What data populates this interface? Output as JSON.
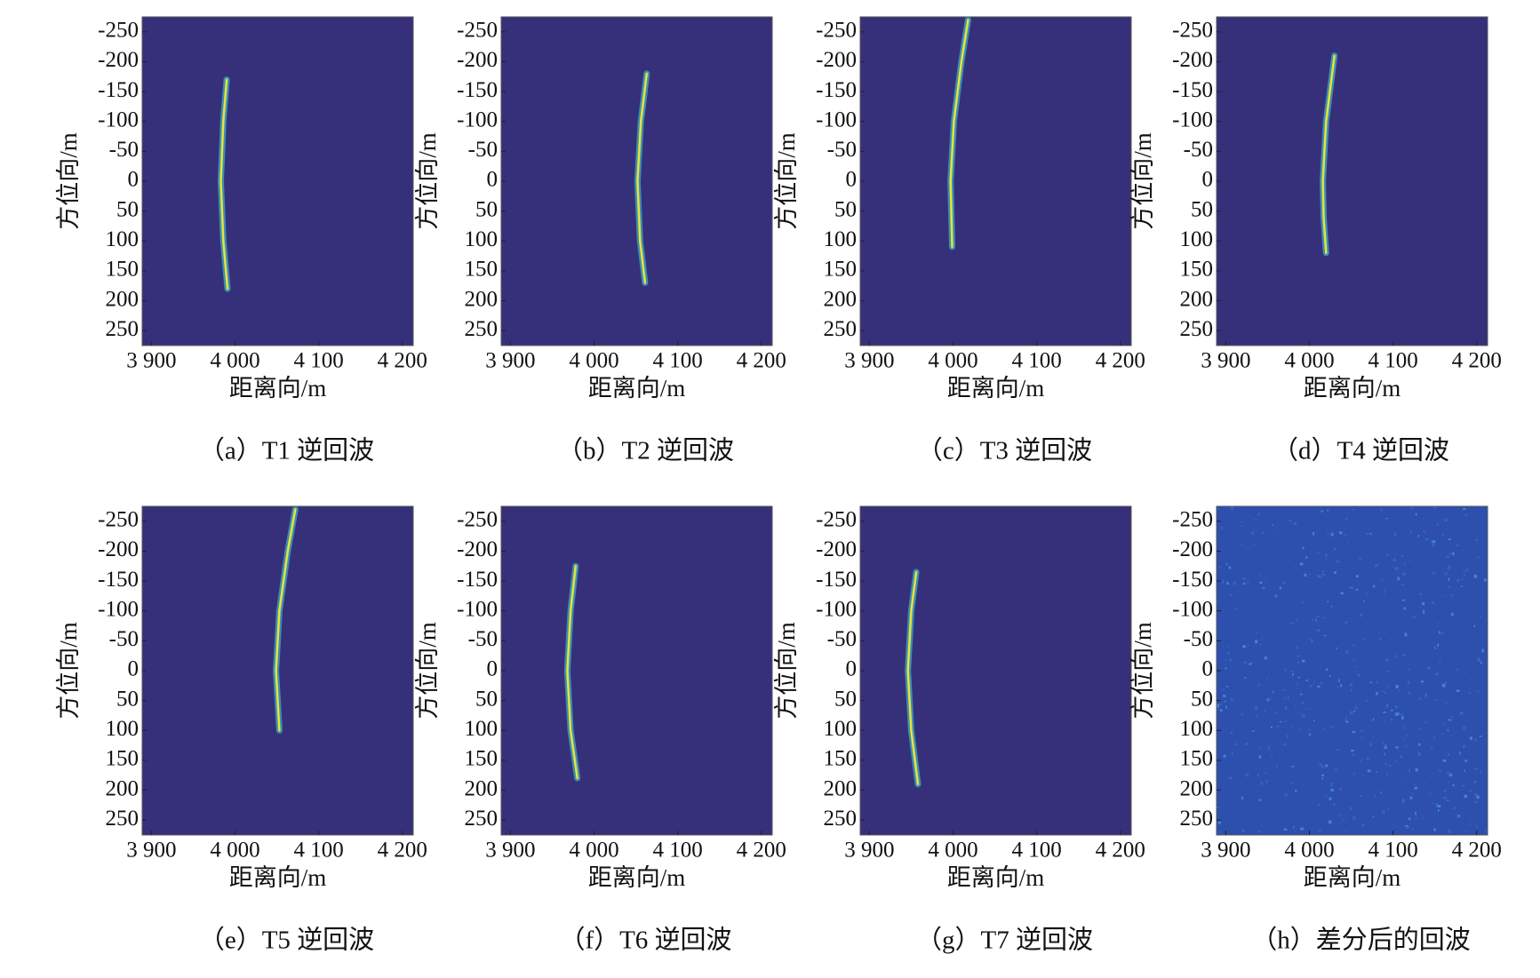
{
  "chart_data": [
    {
      "type": "line",
      "caption": "（a）T1 逆回波",
      "xlabel": "距离向/m",
      "ylabel": "方位向/m",
      "background": "#36307a",
      "xlim": [
        3889,
        4213
      ],
      "ylim": [
        -275,
        275
      ],
      "y_inverted": true,
      "xticks": [
        {
          "value": 3900,
          "label": "3 900"
        },
        {
          "value": 4000,
          "label": "4 000"
        },
        {
          "value": 4100,
          "label": "4 100"
        },
        {
          "value": 4200,
          "label": "4 200"
        }
      ],
      "yticks": [
        -250,
        -200,
        -150,
        -100,
        -50,
        0,
        50,
        100,
        150,
        200,
        250
      ],
      "series": [
        {
          "color": "#e8e23a",
          "x": [
            3990,
            3986,
            3983,
            3986,
            3991
          ],
          "values": [
            -170,
            -100,
            0,
            100,
            180
          ]
        }
      ]
    },
    {
      "type": "line",
      "caption": "（b）T2 逆回波",
      "xlabel": "距离向/m",
      "ylabel": "方位向/m",
      "background": "#36307a",
      "xlim": [
        3889,
        4213
      ],
      "ylim": [
        -275,
        275
      ],
      "y_inverted": true,
      "xticks": [
        {
          "value": 3900,
          "label": "3 900"
        },
        {
          "value": 4000,
          "label": "4 000"
        },
        {
          "value": 4100,
          "label": "4 100"
        },
        {
          "value": 4200,
          "label": "4 200"
        }
      ],
      "yticks": [
        -250,
        -200,
        -150,
        -100,
        -50,
        0,
        50,
        100,
        150,
        200,
        250
      ],
      "series": [
        {
          "color": "#e8e23a",
          "x": [
            4063,
            4056,
            4052,
            4055,
            4061
          ],
          "values": [
            -180,
            -100,
            0,
            100,
            170
          ]
        }
      ]
    },
    {
      "type": "line",
      "caption": "（c）T3 逆回波",
      "xlabel": "距离向/m",
      "ylabel": "方位向/m",
      "background": "#36307a",
      "xlim": [
        3889,
        4213
      ],
      "ylim": [
        -275,
        275
      ],
      "y_inverted": true,
      "xticks": [
        {
          "value": 3900,
          "label": "3 900"
        },
        {
          "value": 4000,
          "label": "4 000"
        },
        {
          "value": 4100,
          "label": "4 100"
        },
        {
          "value": 4200,
          "label": "4 200"
        }
      ],
      "yticks": [
        -250,
        -200,
        -150,
        -100,
        -50,
        0,
        50,
        100,
        150,
        200,
        250
      ],
      "series": [
        {
          "color": "#e8e23a",
          "x": [
            4018,
            4010,
            4001,
            3997,
            3999
          ],
          "values": [
            -270,
            -200,
            -100,
            0,
            110
          ]
        }
      ]
    },
    {
      "type": "line",
      "caption": "（d）T4 逆回波",
      "xlabel": "距离向/m",
      "ylabel": "方位向/m",
      "background": "#36307a",
      "xlim": [
        3889,
        4213
      ],
      "ylim": [
        -275,
        275
      ],
      "y_inverted": true,
      "xticks": [
        {
          "value": 3900,
          "label": "3 900"
        },
        {
          "value": 4000,
          "label": "4 000"
        },
        {
          "value": 4100,
          "label": "4 100"
        },
        {
          "value": 4200,
          "label": "4 200"
        }
      ],
      "yticks": [
        -250,
        -200,
        -150,
        -100,
        -50,
        0,
        50,
        100,
        150,
        200,
        250
      ],
      "series": [
        {
          "color": "#e8e23a",
          "x": [
            4030,
            4020,
            4016,
            4017,
            4020
          ],
          "values": [
            -210,
            -100,
            0,
            60,
            120
          ]
        }
      ]
    },
    {
      "type": "line",
      "caption": "（e）T5 逆回波",
      "xlabel": "距离向/m",
      "ylabel": "方位向/m",
      "background": "#36307a",
      "xlim": [
        3889,
        4213
      ],
      "ylim": [
        -275,
        275
      ],
      "y_inverted": true,
      "xticks": [
        {
          "value": 3900,
          "label": "3 900"
        },
        {
          "value": 4000,
          "label": "4 000"
        },
        {
          "value": 4100,
          "label": "4 100"
        },
        {
          "value": 4200,
          "label": "4 200"
        }
      ],
      "yticks": [
        -250,
        -200,
        -150,
        -100,
        -50,
        0,
        50,
        100,
        150,
        200,
        250
      ],
      "series": [
        {
          "color": "#e8e23a",
          "x": [
            4072,
            4063,
            4053,
            4049,
            4053
          ],
          "values": [
            -270,
            -200,
            -100,
            0,
            100
          ]
        }
      ]
    },
    {
      "type": "line",
      "caption": "（f）T6 逆回波",
      "xlabel": "距离向/m",
      "ylabel": "方位向/m",
      "background": "#36307a",
      "xlim": [
        3889,
        4213
      ],
      "ylim": [
        -275,
        275
      ],
      "y_inverted": true,
      "xticks": [
        {
          "value": 3900,
          "label": "3 900"
        },
        {
          "value": 4000,
          "label": "4 000"
        },
        {
          "value": 4100,
          "label": "4 100"
        },
        {
          "value": 4200,
          "label": "4 200"
        }
      ],
      "yticks": [
        -250,
        -200,
        -150,
        -100,
        -50,
        0,
        50,
        100,
        150,
        200,
        250
      ],
      "series": [
        {
          "color": "#e8e23a",
          "x": [
            3978,
            3972,
            3968,
            3972,
            3980
          ],
          "values": [
            -175,
            -100,
            0,
            100,
            180
          ]
        }
      ]
    },
    {
      "type": "line",
      "caption": "（g）T7 逆回波",
      "xlabel": "距离向/m",
      "ylabel": "方位向/m",
      "background": "#36307a",
      "xlim": [
        3889,
        4213
      ],
      "ylim": [
        -275,
        275
      ],
      "y_inverted": true,
      "xticks": [
        {
          "value": 3900,
          "label": "3 900"
        },
        {
          "value": 4000,
          "label": "4 000"
        },
        {
          "value": 4100,
          "label": "4 100"
        },
        {
          "value": 4200,
          "label": "4 200"
        }
      ],
      "yticks": [
        -250,
        -200,
        -150,
        -100,
        -50,
        0,
        50,
        100,
        150,
        200,
        250
      ],
      "series": [
        {
          "color": "#e8e23a",
          "x": [
            3956,
            3950,
            3946,
            3950,
            3958
          ],
          "values": [
            -165,
            -100,
            0,
            100,
            190
          ]
        }
      ]
    },
    {
      "type": "image",
      "caption": "（h）差分后的回波",
      "xlabel": "距离向/m",
      "ylabel": "方位向/m",
      "background": "#2d4fae",
      "xlim": [
        3889,
        4213
      ],
      "ylim": [
        -275,
        275
      ],
      "y_inverted": true,
      "xticks": [
        {
          "value": 3900,
          "label": "3 900"
        },
        {
          "value": 4000,
          "label": "4 000"
        },
        {
          "value": 4100,
          "label": "4 100"
        },
        {
          "value": 4200,
          "label": "4 200"
        }
      ],
      "yticks": [
        -250,
        -200,
        -150,
        -100,
        -50,
        0,
        50,
        100,
        150,
        200,
        250
      ],
      "series": []
    }
  ]
}
